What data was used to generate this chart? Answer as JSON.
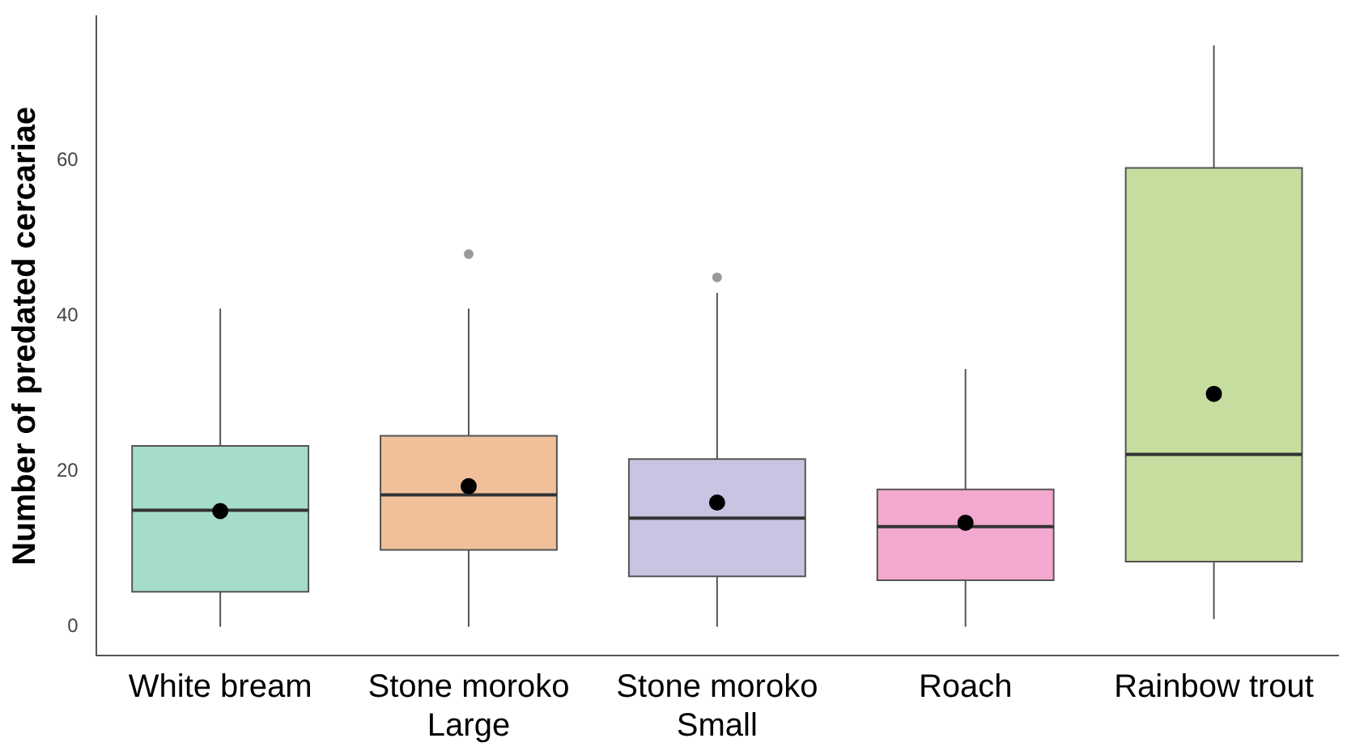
{
  "chart_data": {
    "type": "box",
    "ylabel": "Number of predated cercariae",
    "categories": [
      "White bream",
      "Stone moroko Large",
      "Stone moroko Small",
      "Roach",
      "Rainbow trout"
    ],
    "colors": [
      "#a6dccb",
      "#f1c09a",
      "#c8c5e2",
      "#f3a8cf",
      "#c5dea0"
    ],
    "boxes": [
      {
        "low": 0,
        "q1": 4.5,
        "median": 15,
        "q3": 23.3,
        "high": 41,
        "mean": 14.9
      },
      {
        "low": 0,
        "q1": 9.9,
        "median": 17,
        "q3": 24.6,
        "high": 41,
        "mean": 18.1,
        "outliers": [
          48
        ]
      },
      {
        "low": 0,
        "q1": 6.5,
        "median": 14,
        "q3": 21.6,
        "high": 43,
        "mean": 16,
        "outliers": [
          45
        ]
      },
      {
        "low": 0,
        "q1": 6,
        "median": 12.9,
        "q3": 17.7,
        "high": 33.2,
        "mean": 13.4
      },
      {
        "low": 1,
        "q1": 8.4,
        "median": 22.2,
        "q3": 59.1,
        "high": 74.9,
        "mean": 30
      }
    ],
    "ylim": [
      -3.7,
      78.6
    ],
    "yticks": [
      0,
      20,
      40,
      60
    ],
    "grid": false,
    "legend": false
  }
}
